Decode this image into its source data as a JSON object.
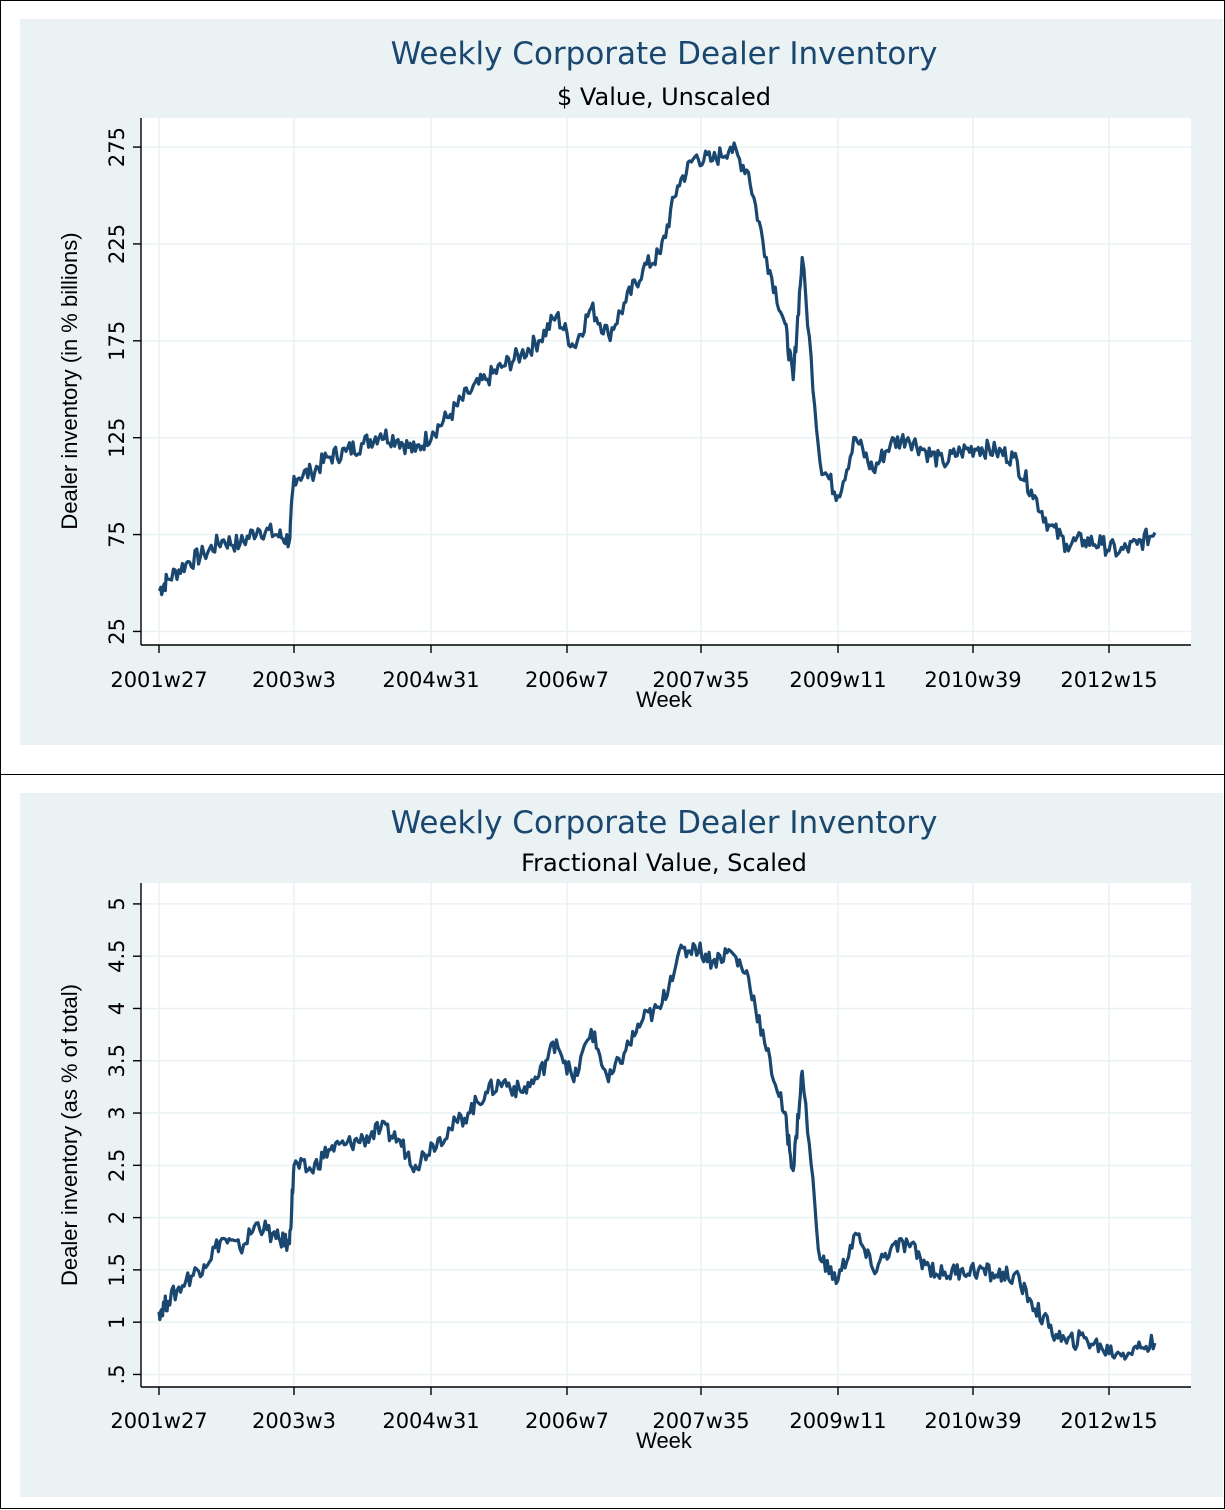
{
  "chart_data": [
    {
      "type": "line",
      "title": "Weekly Corporate Dealer Inventory",
      "subtitle": "$ Value, Unscaled",
      "xlabel": "Week",
      "ylabel": "Dealer inventory (in % billions)",
      "x_tick_labels": [
        "2001w27",
        "2003w3",
        "2004w31",
        "2006w7",
        "2007w35",
        "2009w11",
        "2010w39",
        "2012w15"
      ],
      "y_ticks": [
        25,
        75,
        125,
        175,
        225,
        275
      ],
      "ylim": [
        18,
        290
      ],
      "grid": true,
      "series_color": "#1a476f",
      "background_color": "#eaf2f3",
      "x": [
        2001.5,
        2001.6,
        2001.8,
        2002.0,
        2002.2,
        2002.4,
        2002.6,
        2002.8,
        2002.95,
        2003.0,
        2003.2,
        2003.4,
        2003.6,
        2003.8,
        2004.0,
        2004.2,
        2004.4,
        2004.6,
        2004.8,
        2005.0,
        2005.2,
        2005.4,
        2005.6,
        2005.8,
        2006.0,
        2006.2,
        2006.4,
        2006.6,
        2006.8,
        2007.0,
        2007.2,
        2007.4,
        2007.6,
        2007.8,
        2008.0,
        2008.2,
        2008.4,
        2008.6,
        2008.7,
        2008.8,
        2009.0,
        2009.2,
        2009.4,
        2009.6,
        2009.8,
        2010.0,
        2010.2,
        2010.4,
        2010.6,
        2010.8,
        2011.0,
        2011.2,
        2011.4,
        2011.6,
        2011.8,
        2012.0,
        2012.2,
        2012.4,
        2012.6,
        2012.8
      ],
      "values": [
        46,
        52,
        60,
        65,
        72,
        70,
        78,
        75,
        72,
        105,
        107,
        115,
        118,
        122,
        127,
        124,
        118,
        128,
        137,
        148,
        155,
        162,
        168,
        175,
        188,
        172,
        192,
        178,
        195,
        212,
        220,
        255,
        270,
        268,
        275,
        262,
        218,
        185,
        155,
        218,
        112,
        95,
        125,
        108,
        122,
        125,
        118,
        112,
        118,
        120,
        118,
        115,
        98,
        80,
        70,
        72,
        70,
        66,
        70,
        76
      ]
    },
    {
      "type": "line",
      "title": "Weekly Corporate Dealer Inventory",
      "subtitle": "Fractional Value, Scaled",
      "xlabel": "Week",
      "ylabel": "Dealer inventory (as % of total)",
      "x_tick_labels": [
        "2001w27",
        "2003w3",
        "2004w31",
        "2006w7",
        "2007w35",
        "2009w11",
        "2010w39",
        "2012w15"
      ],
      "y_ticks": [
        0.5,
        1,
        1.5,
        2,
        2.5,
        3,
        3.5,
        4,
        4.5,
        5
      ],
      "y_tick_labels": [
        ".5",
        "1",
        "1.5",
        "2",
        "2.5",
        "3",
        "3.5",
        "4",
        "4.5",
        "5"
      ],
      "ylim": [
        0.38,
        5.2
      ],
      "grid": true,
      "series_color": "#1a476f",
      "background_color": "#eaf2f3",
      "x": [
        2001.5,
        2001.6,
        2001.8,
        2002.0,
        2002.2,
        2002.4,
        2002.6,
        2002.8,
        2002.95,
        2003.0,
        2003.2,
        2003.4,
        2003.6,
        2003.8,
        2004.0,
        2004.2,
        2004.4,
        2004.6,
        2004.8,
        2005.0,
        2005.2,
        2005.4,
        2005.6,
        2005.8,
        2006.0,
        2006.2,
        2006.4,
        2006.6,
        2006.8,
        2007.0,
        2007.2,
        2007.4,
        2007.6,
        2007.8,
        2008.0,
        2008.2,
        2008.4,
        2008.6,
        2008.7,
        2008.8,
        2009.0,
        2009.2,
        2009.4,
        2009.6,
        2009.8,
        2010.0,
        2010.2,
        2010.4,
        2010.6,
        2010.8,
        2011.0,
        2011.2,
        2011.4,
        2011.6,
        2011.8,
        2012.0,
        2012.2,
        2012.4,
        2012.6,
        2012.8
      ],
      "values": [
        1.1,
        1.2,
        1.4,
        1.55,
        1.8,
        1.7,
        1.95,
        1.8,
        1.75,
        2.5,
        2.45,
        2.65,
        2.7,
        2.75,
        2.85,
        2.75,
        2.5,
        2.7,
        2.85,
        3.0,
        3.2,
        3.3,
        3.2,
        3.35,
        3.7,
        3.3,
        3.8,
        3.3,
        3.6,
        3.9,
        4.0,
        4.5,
        4.6,
        4.45,
        4.55,
        4.3,
        3.6,
        3.0,
        2.45,
        3.4,
        1.6,
        1.4,
        1.85,
        1.5,
        1.7,
        1.75,
        1.55,
        1.45,
        1.5,
        1.5,
        1.45,
        1.45,
        1.2,
        0.95,
        0.8,
        0.85,
        0.75,
        0.7,
        0.75,
        0.8
      ]
    }
  ]
}
